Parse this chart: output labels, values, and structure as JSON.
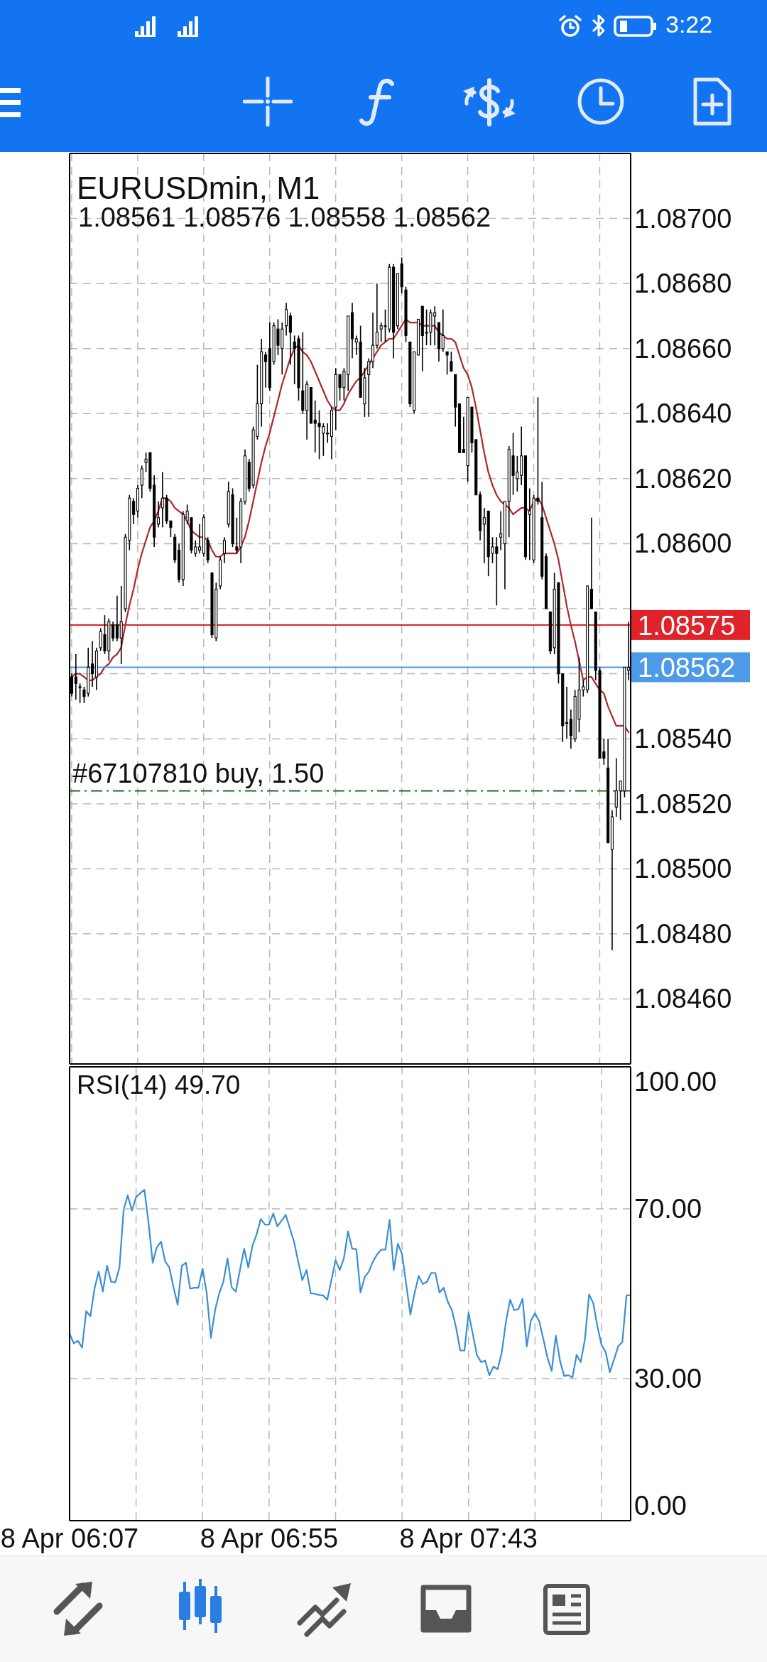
{
  "chart_data": [
    {
      "type": "candlestick",
      "title": "EURUSDmin, M1",
      "subtitle": "1.08561 1.08576 1.08558 1.08562",
      "annotations": [
        "3:22"
      ],
      "color": "#000000",
      "categories": [
        null,
        null,
        null,
        null,
        null,
        null,
        null,
        null,
        null,
        null,
        null,
        null,
        null,
        null,
        null,
        null,
        null,
        null,
        null,
        null,
        null,
        null,
        null,
        null,
        null,
        null,
        null,
        null,
        null,
        null,
        null,
        null,
        null,
        null,
        null,
        null,
        null,
        null,
        null,
        null,
        null,
        null,
        null,
        null,
        null,
        null,
        null,
        null,
        null,
        null,
        null,
        null,
        null,
        null,
        null,
        null,
        null,
        null,
        null,
        null,
        null,
        null,
        null,
        null,
        null,
        null,
        null,
        null,
        null,
        null,
        null,
        null,
        null,
        null,
        null,
        null,
        null,
        null,
        null,
        null,
        null,
        null,
        null,
        null,
        null,
        null,
        null,
        null,
        null,
        null,
        null,
        null,
        null,
        null,
        null,
        null,
        null,
        null,
        null,
        null,
        null,
        null,
        null,
        null,
        null,
        null,
        null,
        null,
        null,
        null,
        null,
        null,
        null,
        null,
        null,
        null,
        null,
        null,
        null,
        null,
        null,
        null,
        null,
        null,
        null,
        null,
        null,
        null,
        null,
        null,
        null,
        null,
        null,
        null,
        null,
        null
      ],
      "ohlc": [
        [
          1.08559,
          1.0856,
          1.08553,
          1.08554
        ],
        [
          1.08559,
          1.08566,
          1.08552,
          1.08557
        ],
        [
          1.08556,
          1.08557,
          1.08551,
          1.08556
        ],
        [
          1.08555,
          1.08556,
          1.08551,
          1.08553
        ],
        [
          1.08554,
          1.08568,
          1.08553,
          1.08562
        ],
        [
          1.08563,
          1.0857,
          1.08556,
          1.0856
        ],
        [
          1.08559,
          1.08568,
          1.08555,
          1.08567
        ],
        [
          1.08568,
          1.08574,
          1.08567,
          1.08573
        ],
        [
          1.08572,
          1.08578,
          1.08566,
          1.08567
        ],
        [
          1.08567,
          1.08577,
          1.08564,
          1.08576
        ],
        [
          1.08575,
          1.08576,
          1.0857,
          1.08571
        ],
        [
          1.08575,
          1.08584,
          1.0857,
          1.08571
        ],
        [
          1.08571,
          1.08587,
          1.08563,
          1.08576
        ],
        [
          1.0858,
          1.08603,
          1.08579,
          1.08602
        ],
        [
          1.08601,
          1.08615,
          1.08598,
          1.08614
        ],
        [
          1.08613,
          1.08614,
          1.08606,
          1.08609
        ],
        [
          1.0861,
          1.08618,
          1.08608,
          1.08617
        ],
        [
          1.08618,
          1.08624,
          1.08614,
          1.08623
        ],
        [
          1.08625,
          1.08628,
          1.08622,
          1.08626
        ],
        [
          1.08628,
          1.08628,
          1.08616,
          1.08617
        ],
        [
          1.08618,
          1.08621,
          1.08599,
          1.08602
        ],
        [
          1.08606,
          1.08613,
          1.08605,
          1.08608
        ],
        [
          1.08611,
          1.08622,
          1.08605,
          1.08614
        ],
        [
          1.08614,
          1.08615,
          1.08606,
          1.08607
        ],
        [
          1.08607,
          1.08607,
          1.08602,
          1.08605
        ],
        [
          1.08602,
          1.08603,
          1.08594,
          1.08595
        ],
        [
          1.08598,
          1.086,
          1.08588,
          1.08589
        ],
        [
          1.08589,
          1.0861,
          1.08587,
          1.08609
        ],
        [
          1.08607,
          1.08612,
          1.08606,
          1.0861
        ],
        [
          1.08608,
          1.08608,
          1.08597,
          1.08598
        ],
        [
          1.08597,
          1.08601,
          1.08596,
          1.08599
        ],
        [
          1.08598,
          1.08606,
          1.08597,
          1.08599
        ],
        [
          1.08597,
          1.08609,
          1.08596,
          1.08608
        ],
        [
          1.08601,
          1.08602,
          1.08594,
          1.08595
        ],
        [
          1.08591,
          1.08591,
          1.08571,
          1.08572
        ],
        [
          1.08571,
          1.08588,
          1.0857,
          1.08586
        ],
        [
          1.08587,
          1.08596,
          1.08586,
          1.08595
        ],
        [
          1.08597,
          1.08602,
          1.08594,
          1.08601
        ],
        [
          1.08606,
          1.08619,
          1.08605,
          1.08616
        ],
        [
          1.08615,
          1.08617,
          1.08599,
          1.086
        ],
        [
          1.08599,
          1.08608,
          1.08597,
          1.08598
        ],
        [
          1.08599,
          1.08614,
          1.08594,
          1.08613
        ],
        [
          1.08613,
          1.08629,
          1.08612,
          1.08627
        ],
        [
          1.08625,
          1.08626,
          1.08616,
          1.08617
        ],
        [
          1.08618,
          1.08636,
          1.08617,
          1.08635
        ],
        [
          1.08633,
          1.08655,
          1.08632,
          1.08643
        ],
        [
          1.08643,
          1.08663,
          1.08636,
          1.08659
        ],
        [
          1.08658,
          1.08659,
          1.08648,
          1.08656
        ],
        [
          1.0866,
          1.08668,
          1.08647,
          1.08648
        ],
        [
          1.08656,
          1.08668,
          1.08655,
          1.08667
        ],
        [
          1.08666,
          1.08669,
          1.08658,
          1.08661
        ],
        [
          1.0866,
          1.08668,
          1.08652,
          1.08666
        ],
        [
          1.08667,
          1.08674,
          1.08664,
          1.08672
        ],
        [
          1.0867,
          1.08671,
          1.08655,
          1.08665
        ],
        [
          1.08662,
          1.08664,
          1.08649,
          1.0866
        ],
        [
          1.08663,
          1.08664,
          1.08644,
          1.08648
        ],
        [
          1.08647,
          1.08665,
          1.0864,
          1.08641
        ],
        [
          1.08641,
          1.0865,
          1.08632,
          1.08649
        ],
        [
          1.08648,
          1.08648,
          1.08637,
          1.08637
        ],
        [
          1.08638,
          1.08644,
          1.08628,
          1.08637
        ],
        [
          1.08637,
          1.08641,
          1.08626,
          1.08636
        ],
        [
          1.08634,
          1.08637,
          1.08627,
          1.08636
        ],
        [
          1.08634,
          1.08637,
          1.08631,
          1.08634
        ],
        [
          1.08633,
          1.08642,
          1.08626,
          1.08641
        ],
        [
          1.08642,
          1.08654,
          1.08635,
          1.08652
        ],
        [
          1.08652,
          1.08652,
          1.08644,
          1.08648
        ],
        [
          1.08648,
          1.08654,
          1.08644,
          1.08653
        ],
        [
          1.08652,
          1.0867,
          1.08647,
          1.0867
        ],
        [
          1.08671,
          1.08674,
          1.08657,
          1.08663
        ],
        [
          1.08662,
          1.08664,
          1.08658,
          1.08663
        ],
        [
          1.08662,
          1.08667,
          1.08645,
          1.08645
        ],
        [
          1.08643,
          1.08654,
          1.08639,
          1.08651
        ],
        [
          1.08652,
          1.08657,
          1.08639,
          1.08656
        ],
        [
          1.08656,
          1.08671,
          1.08654,
          1.08661
        ],
        [
          1.08661,
          1.0868,
          1.0866,
          1.08665
        ],
        [
          1.08666,
          1.08668,
          1.08662,
          1.08667
        ],
        [
          1.08667,
          1.08672,
          1.08662,
          1.08667
        ],
        [
          1.08666,
          1.08686,
          1.08665,
          1.08685
        ],
        [
          1.08685,
          1.08686,
          1.08657,
          1.08665
        ],
        [
          1.08667,
          1.08683,
          1.08666,
          1.08683
        ],
        [
          1.08686,
          1.08688,
          1.08677,
          1.08679
        ],
        [
          1.08678,
          1.08679,
          1.08662,
          1.08664
        ],
        [
          1.08662,
          1.08662,
          1.08642,
          1.08643
        ],
        [
          1.08641,
          1.08659,
          1.0864,
          1.08659
        ],
        [
          1.08658,
          1.08669,
          1.08658,
          1.08669
        ],
        [
          1.08673,
          1.08673,
          1.08653,
          1.08664
        ],
        [
          1.08665,
          1.08672,
          1.08661,
          1.08665
        ],
        [
          1.08665,
          1.08672,
          1.08661,
          1.08671
        ],
        [
          1.0867,
          1.08673,
          1.08661,
          1.08671
        ],
        [
          1.08668,
          1.08668,
          1.08656,
          1.0866
        ],
        [
          1.0866,
          1.08672,
          1.08659,
          1.08664
        ],
        [
          1.08659,
          1.08659,
          1.08652,
          1.08658
        ],
        [
          1.08656,
          1.08659,
          1.08653,
          1.08653
        ],
        [
          1.08652,
          1.08652,
          1.08636,
          1.08642
        ],
        [
          1.08643,
          1.08643,
          1.08628,
          1.08628
        ],
        [
          1.08629,
          1.08639,
          1.08628,
          1.08628
        ],
        [
          1.08624,
          1.08645,
          1.08619,
          1.08645
        ],
        [
          1.08642,
          1.08642,
          1.08628,
          1.08631
        ],
        [
          1.08632,
          1.08632,
          1.08615,
          1.08615
        ],
        [
          1.08615,
          1.08616,
          1.08601,
          1.08604
        ],
        [
          1.08606,
          1.08611,
          1.08594,
          1.08608
        ],
        [
          1.0861,
          1.0861,
          1.0859,
          1.08596
        ],
        [
          1.08597,
          1.08602,
          1.08594,
          1.08599
        ],
        [
          1.08599,
          1.08602,
          1.08581,
          1.08597
        ],
        [
          1.08602,
          1.0861,
          1.08598,
          1.08603
        ],
        [
          1.086,
          1.08613,
          1.08586,
          1.08613
        ],
        [
          1.08613,
          1.0863,
          1.08602,
          1.08629
        ],
        [
          1.08627,
          1.08634,
          1.08615,
          1.08621
        ],
        [
          1.0862,
          1.08627,
          1.08616,
          1.08622
        ],
        [
          1.08621,
          1.08636,
          1.08618,
          1.08627
        ],
        [
          1.08627,
          1.08627,
          1.08595,
          1.08596
        ],
        [
          1.08609,
          1.08617,
          1.08595,
          1.0861
        ],
        [
          1.08595,
          1.08615,
          1.08594,
          1.08614
        ],
        [
          1.08614,
          1.08645,
          1.08612,
          1.08613
        ],
        [
          1.08608,
          1.08619,
          1.08589,
          1.0859
        ],
        [
          1.08596,
          1.08597,
          1.0858,
          1.0858
        ],
        [
          1.08579,
          1.08579,
          1.08566,
          1.08567
        ],
        [
          1.08568,
          1.08591,
          1.08566,
          1.08586
        ],
        [
          1.08588,
          1.08588,
          1.08557,
          1.0856
        ],
        [
          1.0856,
          1.0856,
          1.08539,
          1.08544
        ],
        [
          1.08545,
          1.08556,
          1.0854,
          1.08545
        ],
        [
          1.08546,
          1.08549,
          1.08537,
          1.08541
        ],
        [
          1.0854,
          1.08555,
          1.08539,
          1.08553
        ],
        [
          1.08546,
          1.08565,
          1.08542,
          1.08555
        ],
        [
          1.08555,
          1.08558,
          1.08553,
          1.08556
        ],
        [
          1.08555,
          1.08587,
          1.08554,
          1.08587
        ],
        [
          1.08586,
          1.08608,
          1.0858,
          1.0858
        ],
        [
          1.08579,
          1.08579,
          1.08558,
          1.08561
        ],
        [
          1.08561,
          1.08562,
          1.08534,
          1.08534
        ],
        [
          1.08536,
          1.0854,
          1.08532,
          1.08534
        ],
        [
          1.08531,
          1.0854,
          1.08508,
          1.08508
        ],
        [
          1.08506,
          1.08518,
          1.08475,
          1.08516
        ],
        [
          1.08519,
          1.08534,
          1.08516,
          1.08524
        ],
        [
          1.08524,
          1.08527,
          1.08515,
          1.08527
        ],
        [
          1.08524,
          1.08562,
          1.08522,
          1.08562
        ],
        [
          1.08561,
          1.08576,
          1.08558,
          1.08562
        ]
      ],
      "series": [
        {
          "type": "line",
          "color": "#b0262a",
          "values": [
            1.08559,
            1.0856,
            1.0856,
            1.08559,
            1.08558,
            1.08558,
            1.08559,
            1.0856,
            1.08562,
            1.08563,
            1.08565,
            1.08566,
            1.08568,
            1.08575,
            1.08581,
            1.08586,
            1.08592,
            1.08597,
            1.08601,
            1.08605,
            1.08607,
            1.0861,
            1.08614,
            1.08614,
            1.08613,
            1.08611,
            1.0861,
            1.08609,
            1.08607,
            1.08604,
            1.08603,
            1.08602,
            1.08602,
            1.08601,
            1.08598,
            1.08596,
            1.08596,
            1.08597,
            1.08597,
            1.08597,
            1.08597,
            1.08599,
            1.08602,
            1.08607,
            1.08613,
            1.08619,
            1.08625,
            1.0863,
            1.08634,
            1.08639,
            1.08644,
            1.08649,
            1.08653,
            1.08657,
            1.0866,
            1.08661,
            1.08659,
            1.08658,
            1.08656,
            1.08653,
            1.0865,
            1.08647,
            1.08644,
            1.08642,
            1.08641,
            1.08641,
            1.08643,
            1.08646,
            1.08648,
            1.0865,
            1.08651,
            1.08653,
            1.08655,
            1.08657,
            1.08659,
            1.08661,
            1.08662,
            1.08663,
            1.08663,
            1.08665,
            1.08667,
            1.08669,
            1.08668,
            1.08668,
            1.08668,
            1.08667,
            1.08667,
            1.08667,
            1.08667,
            1.08665,
            1.08664,
            1.08663,
            1.08663,
            1.08662,
            1.08658,
            1.08654,
            1.08652,
            1.08648,
            1.08642,
            1.08635,
            1.08628,
            1.08622,
            1.08618,
            1.08615,
            1.08613,
            1.08612,
            1.08611,
            1.08609,
            1.0861,
            1.08611,
            1.08611,
            1.0861,
            1.08613,
            1.08614,
            1.08612,
            1.08608,
            1.08604,
            1.086,
            1.08595,
            1.08588,
            1.08581,
            1.08575,
            1.0857,
            1.08564,
            1.08558,
            1.08559,
            1.08559,
            1.08557,
            1.08555,
            1.08554,
            1.0855,
            1.08547,
            1.08544,
            1.08544,
            1.08544,
            1.08542
          ]
        }
      ],
      "ylim": [
        1.0844,
        1.0872
      ],
      "yticks": [
        {
          "value": 1.0846,
          "label": "1.08460"
        },
        {
          "value": 1.0848,
          "label": "1.08480"
        },
        {
          "value": 1.085,
          "label": "1.08500"
        },
        {
          "value": 1.0852,
          "label": "1.08520"
        },
        {
          "value": 1.0854,
          "label": "1.08540"
        },
        {
          "value": 1.0856,
          "label": null
        },
        {
          "value": 1.0858,
          "label": null
        },
        {
          "value": 1.086,
          "label": "1.08600"
        },
        {
          "value": 1.0862,
          "label": "1.08620"
        },
        {
          "value": 1.0864,
          "label": "1.08640"
        },
        {
          "value": 1.0866,
          "label": "1.08660"
        },
        {
          "value": 1.0868,
          "label": "1.08680"
        },
        {
          "value": 1.087,
          "label": "1.08700"
        }
      ],
      "tick_labels": "y",
      "grid": true,
      "ref_lines": [
        {
          "axis": "y",
          "value": 1.08575,
          "label": "1.08575",
          "color": "#e0222a",
          "line_style": "solid"
        },
        {
          "axis": "y",
          "value": 1.08562,
          "label": "1.08562",
          "color": "#4d9ae8",
          "line_style": "solid"
        },
        {
          "axis": "y",
          "value": 1.08524,
          "label": "#67107810 buy, 1.50",
          "color": "#1f6b1f",
          "line_style": "dashdot"
        }
      ]
    },
    {
      "type": "line",
      "title": "RSI(14) 49.70",
      "categories": [
        "8 Apr 06:07",
        null,
        null,
        null,
        null,
        null,
        null,
        null,
        null,
        null,
        null,
        null,
        null,
        null,
        null,
        null,
        null,
        null,
        null,
        null,
        null,
        null,
        null,
        null,
        null,
        null,
        null,
        null,
        null,
        null,
        null,
        null,
        null,
        null,
        null,
        null,
        null,
        null,
        null,
        null,
        null,
        null,
        null,
        null,
        null,
        null,
        null,
        null,
        "8 Apr 06:55",
        null,
        null,
        null,
        null,
        null,
        null,
        null,
        null,
        null,
        null,
        null,
        null,
        null,
        null,
        null,
        null,
        null,
        null,
        null,
        null,
        null,
        null,
        null,
        null,
        null,
        null,
        null,
        null,
        null,
        null,
        null,
        null,
        null,
        null,
        null,
        null,
        null,
        null,
        null,
        null,
        null,
        null,
        null,
        null,
        null,
        null,
        null,
        "8 Apr 07:43",
        null,
        null,
        null,
        null,
        null,
        null,
        null,
        null,
        null,
        null,
        null,
        null,
        null,
        null,
        null,
        null,
        null,
        null,
        null,
        null,
        null,
        null,
        null,
        null,
        null,
        null,
        null,
        null,
        null,
        null,
        null,
        null,
        null,
        null,
        null,
        null,
        null,
        null,
        null
      ],
      "series": [
        {
          "color": "#3a8fd4",
          "values": [
            40.6,
            38.3,
            38.9,
            37.3,
            45.9,
            44.7,
            51.2,
            55.2,
            50.5,
            56.6,
            52.8,
            52.7,
            56.2,
            69.8,
            73.2,
            69.6,
            72.8,
            73.7,
            74.5,
            66.7,
            57.3,
            61.0,
            62.3,
            57.6,
            56.2,
            51.5,
            47.4,
            56.6,
            57.3,
            51.2,
            51.4,
            51.4,
            55.9,
            50.1,
            39.6,
            46.1,
            50.1,
            52.8,
            58.3,
            51.5,
            50.5,
            55.6,
            60.6,
            56.2,
            61.3,
            64.0,
            67.6,
            66.3,
            66.3,
            68.9,
            65.9,
            67.2,
            68.6,
            65.4,
            62.3,
            57.6,
            53.2,
            55.6,
            50.1,
            50.0,
            49.7,
            49.6,
            48.6,
            53.2,
            57.9,
            55.6,
            58.3,
            64.7,
            60.6,
            60.5,
            50.3,
            53.9,
            55.2,
            57.6,
            59.3,
            60.4,
            60.4,
            67.4,
            55.6,
            61.8,
            59.3,
            52.2,
            45.1,
            50.1,
            54.2,
            52.3,
            52.8,
            54.9,
            54.9,
            50.3,
            51.4,
            48.1,
            46.1,
            42.0,
            36.6,
            36.6,
            45.5,
            40.6,
            35.6,
            33.9,
            34.2,
            30.8,
            32.8,
            32.2,
            36.2,
            43.4,
            48.6,
            46.1,
            46.4,
            48.8,
            37.6,
            43.7,
            45.4,
            43.5,
            39.3,
            34.9,
            31.8,
            40.1,
            34.2,
            30.6,
            30.8,
            30.3,
            35.6,
            33.9,
            39.3,
            49.8,
            47.8,
            42.3,
            37.9,
            36.2,
            31.5,
            34.5,
            37.6,
            38.6,
            49.6,
            49.7
          ]
        }
      ],
      "ylim": [
        -3.5,
        103.5
      ],
      "yticks": [
        {
          "value": 0,
          "label": "0.00"
        },
        {
          "value": 30,
          "label": "30.00"
        },
        {
          "value": 70,
          "label": "70.00"
        },
        {
          "value": 100,
          "label": "100.00"
        }
      ],
      "grid": "x",
      "ref_lines": [
        {
          "axis": "y",
          "value": 70,
          "color": "#b8b8b8",
          "line_style": "dashed"
        },
        {
          "axis": "y",
          "value": 30,
          "color": "#b8b8b8",
          "line_style": "dashed"
        }
      ]
    }
  ]
}
